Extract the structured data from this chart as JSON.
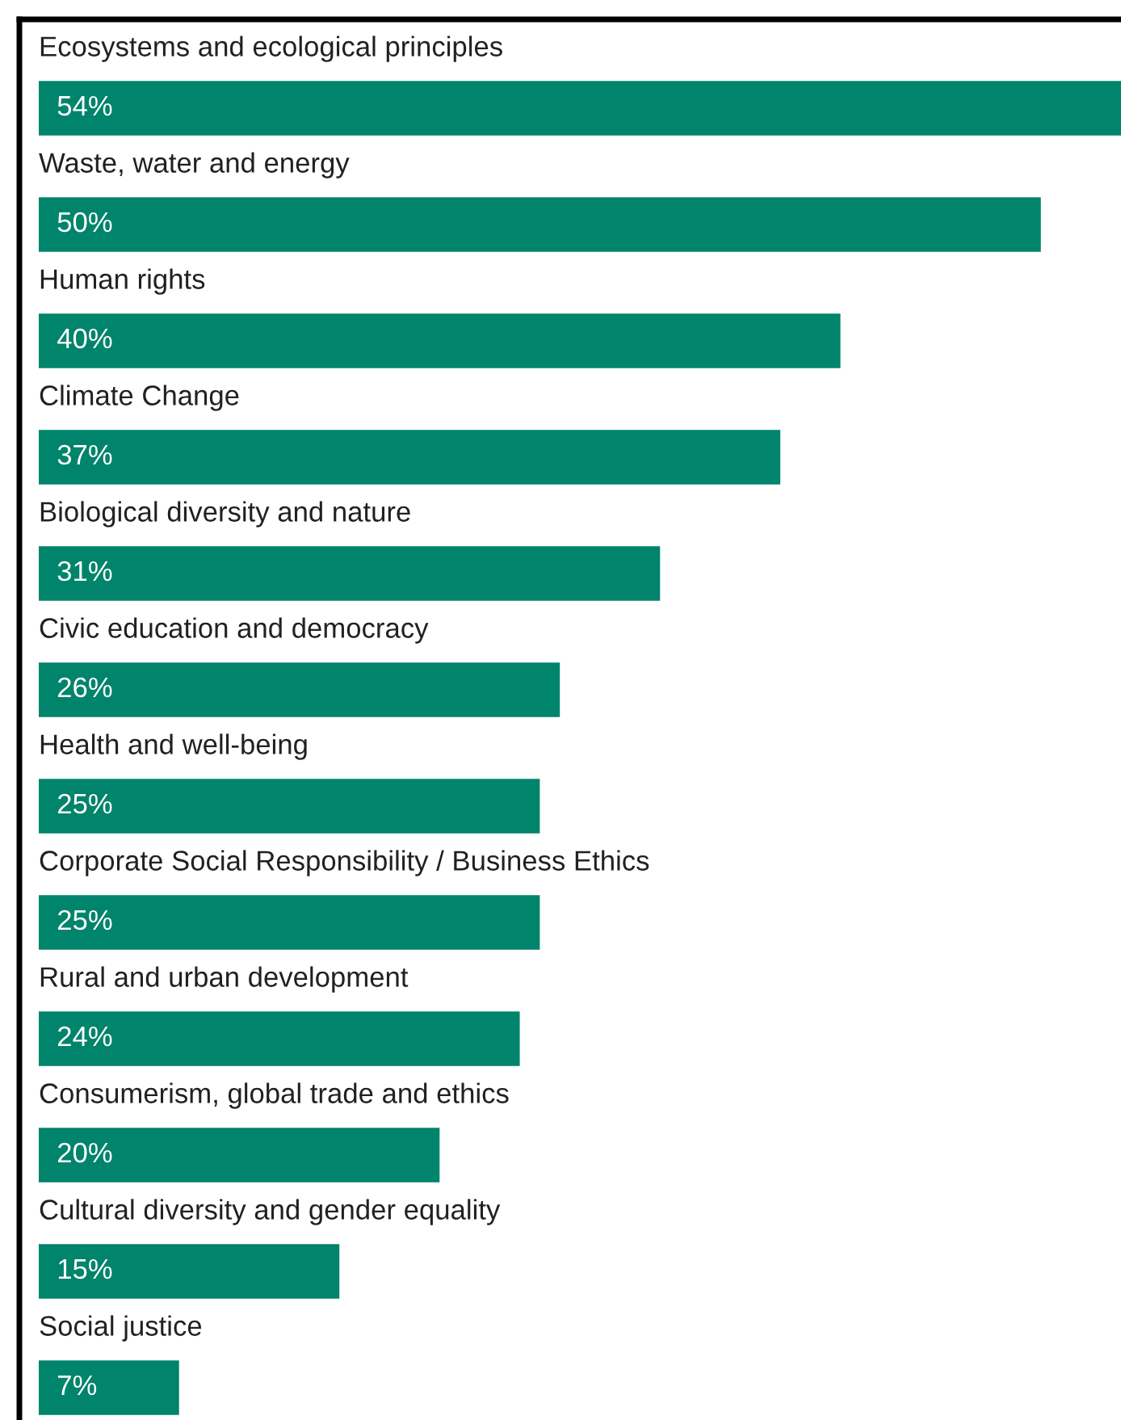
{
  "chart_data": {
    "type": "bar",
    "orientation": "horizontal",
    "categories": [
      "Ecosystems and ecological principles",
      "Waste, water and energy",
      "Human rights",
      "Climate Change",
      "Biological diversity and nature",
      "Civic education and democracy",
      "Health and well-being",
      "Corporate Social Responsibility / Business Ethics",
      "Rural and urban development",
      "Consumerism, global trade and ethics",
      "Cultural diversity and gender equality",
      "Social justice"
    ],
    "values": [
      54,
      50,
      40,
      37,
      31,
      26,
      25,
      25,
      24,
      20,
      15,
      7
    ],
    "value_labels": [
      "54%",
      "50%",
      "40%",
      "37%",
      "31%",
      "26%",
      "25%",
      "25%",
      "24%",
      "20%",
      "15%",
      "7%"
    ],
    "color": "#00846b"
  }
}
